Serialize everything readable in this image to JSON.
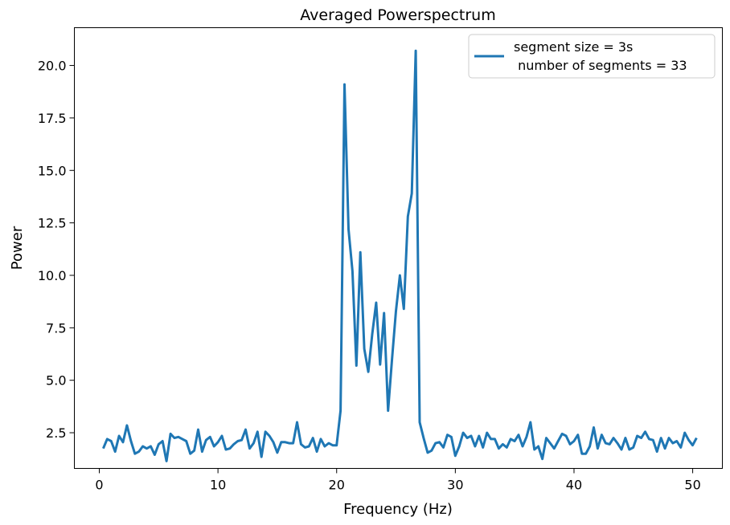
{
  "chart_data": {
    "type": "line",
    "title": "Averaged Powerspectrum",
    "xlabel": "Frequency (Hz)",
    "ylabel": "Power",
    "xlim": [
      -2.1,
      52.5
    ],
    "ylim": [
      0.8,
      21.8
    ],
    "x_ticks": [
      0,
      10,
      20,
      30,
      40,
      50
    ],
    "y_ticks": [
      2.5,
      5.0,
      7.5,
      10.0,
      12.5,
      15.0,
      17.5,
      20.0
    ],
    "x_tick_labels": [
      "0",
      "10",
      "20",
      "30",
      "40",
      "50"
    ],
    "y_tick_labels": [
      "2.5",
      "5.0",
      "7.5",
      "10.0",
      "12.5",
      "15.0",
      "17.5",
      "20.0"
    ],
    "grid": false,
    "legend_position": "top-right",
    "series": [
      {
        "name": "segment size = 3s\n number of segments = 33",
        "name_lines": [
          "segment size = 3s",
          " number of segments = 33"
        ],
        "color": "#1f77b4",
        "x_start": 0.333,
        "x_step": 0.3333,
        "values": [
          1.75,
          2.2,
          2.1,
          1.6,
          2.35,
          2.05,
          2.85,
          2.1,
          1.5,
          1.6,
          1.85,
          1.75,
          1.85,
          1.45,
          1.95,
          2.1,
          1.15,
          2.45,
          2.25,
          2.3,
          2.2,
          2.1,
          1.5,
          1.65,
          2.65,
          1.6,
          2.15,
          2.3,
          1.85,
          2.05,
          2.35,
          1.7,
          1.75,
          1.95,
          2.1,
          2.15,
          2.65,
          1.75,
          2.0,
          2.55,
          1.35,
          2.55,
          2.35,
          2.05,
          1.55,
          2.05,
          2.05,
          2.0,
          2.0,
          3.0,
          1.95,
          1.8,
          1.85,
          2.25,
          1.6,
          2.2,
          1.85,
          2.0,
          1.9,
          1.9,
          3.55,
          19.1,
          12.2,
          10.2,
          5.7,
          11.1,
          6.5,
          5.4,
          7.2,
          8.7,
          5.75,
          8.2,
          3.55,
          6.0,
          8.3,
          10.0,
          8.4,
          12.8,
          13.9,
          20.7,
          3.0,
          2.25,
          1.55,
          1.65,
          2.0,
          2.05,
          1.8,
          2.4,
          2.3,
          1.4,
          1.85,
          2.5,
          2.25,
          2.35,
          1.85,
          2.35,
          1.8,
          2.5,
          2.2,
          2.2,
          1.75,
          1.95,
          1.8,
          2.2,
          2.1,
          2.4,
          1.85,
          2.3,
          3.0,
          1.7,
          1.85,
          1.25,
          2.25,
          2.0,
          1.75,
          2.1,
          2.45,
          2.35,
          1.95,
          2.1,
          2.4,
          1.5,
          1.5,
          1.85,
          2.75,
          1.75,
          2.4,
          2.0,
          1.95,
          2.25,
          2.0,
          1.7,
          2.25,
          1.7,
          1.8,
          2.35,
          2.25,
          2.55,
          2.2,
          2.15,
          1.6,
          2.25,
          1.75,
          2.25,
          2.0,
          2.1,
          1.8,
          2.5,
          2.15,
          1.9,
          2.25
        ]
      }
    ]
  }
}
